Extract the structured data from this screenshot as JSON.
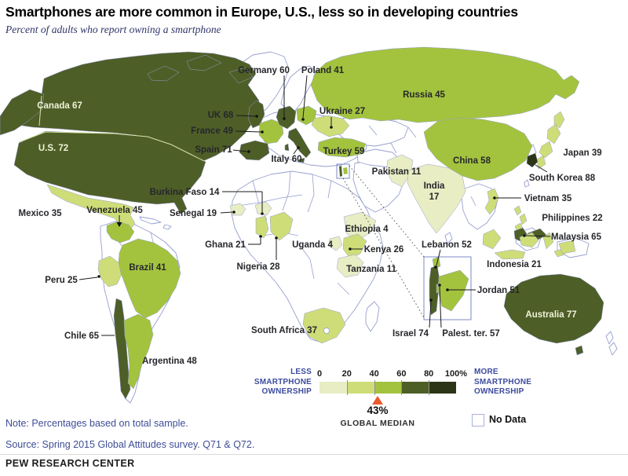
{
  "title": "Smartphones are more common in Europe, U.S., less so in developing countries",
  "subtitle": "Percent of adults who report owning a smartphone",
  "note": "Note: Percentages based on total sample.",
  "source": "Source: Spring 2015 Global Attitudes survey. Q71 & Q72.",
  "footer": "PEW RESEARCH CENTER",
  "legend": {
    "less_label": "LESS\nSMARTPHONE\nOWNERSHIP",
    "more_label": "MORE\nSMARTPHONE\nOWNERSHIP",
    "ticks": [
      "0",
      "20",
      "40",
      "60",
      "80",
      "100%"
    ],
    "band_colors": [
      "#e8edc3",
      "#cedd78",
      "#a3c33e",
      "#4e5e27",
      "#2c3516"
    ],
    "global_median_value": "43%",
    "global_median_label": "GLOBAL MEDIAN",
    "no_data_label": "No Data",
    "median_pct": 43,
    "marker_color": "#ea5b2c"
  },
  "chart_data": {
    "type": "choropleth_map",
    "title": "Percent of adults who report owning a smartphone",
    "unit": "percent",
    "global_median": 43,
    "scale": {
      "domain": [
        0,
        100
      ],
      "bands": [
        [
          0,
          20
        ],
        [
          20,
          40
        ],
        [
          40,
          60
        ],
        [
          60,
          80
        ],
        [
          80,
          100
        ]
      ],
      "colors": [
        "#e8edc3",
        "#cedd78",
        "#a3c33e",
        "#4e5e27",
        "#2c3516"
      ]
    },
    "countries": [
      {
        "name": "Canada",
        "value": 67
      },
      {
        "name": "U.S.",
        "value": 72
      },
      {
        "name": "Mexico",
        "value": 35
      },
      {
        "name": "Venezuela",
        "value": 45
      },
      {
        "name": "Peru",
        "value": 25
      },
      {
        "name": "Brazil",
        "value": 41
      },
      {
        "name": "Chile",
        "value": 65
      },
      {
        "name": "Argentina",
        "value": 48
      },
      {
        "name": "UK",
        "value": 68
      },
      {
        "name": "France",
        "value": 49
      },
      {
        "name": "Spain",
        "value": 71
      },
      {
        "name": "Germany",
        "value": 60
      },
      {
        "name": "Italy",
        "value": 60
      },
      {
        "name": "Poland",
        "value": 41
      },
      {
        "name": "Ukraine",
        "value": 27
      },
      {
        "name": "Russia",
        "value": 45
      },
      {
        "name": "Turkey",
        "value": 59
      },
      {
        "name": "Lebanon",
        "value": 52
      },
      {
        "name": "Israel",
        "value": 74
      },
      {
        "name": "Palest. ter.",
        "value": 57
      },
      {
        "name": "Jordan",
        "value": 51
      },
      {
        "name": "Senegal",
        "value": 19
      },
      {
        "name": "Burkina Faso",
        "value": 14
      },
      {
        "name": "Ghana",
        "value": 21
      },
      {
        "name": "Nigeria",
        "value": 28
      },
      {
        "name": "Ethiopia",
        "value": 4
      },
      {
        "name": "Uganda",
        "value": 4
      },
      {
        "name": "Kenya",
        "value": 26
      },
      {
        "name": "Tanzania",
        "value": 11
      },
      {
        "name": "South Africa",
        "value": 37
      },
      {
        "name": "Pakistan",
        "value": 11
      },
      {
        "name": "India",
        "value": 17
      },
      {
        "name": "China",
        "value": 58
      },
      {
        "name": "Japan",
        "value": 39
      },
      {
        "name": "South Korea",
        "value": 88
      },
      {
        "name": "Vietnam",
        "value": 35
      },
      {
        "name": "Philippines",
        "value": 22
      },
      {
        "name": "Malaysia",
        "value": 65
      },
      {
        "name": "Indonesia",
        "value": 21
      },
      {
        "name": "Australia",
        "value": 77
      }
    ]
  }
}
